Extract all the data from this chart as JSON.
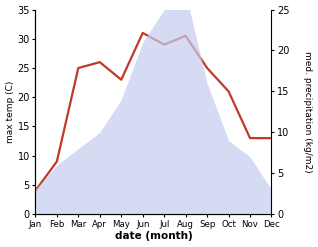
{
  "months": [
    "Jan",
    "Feb",
    "Mar",
    "Apr",
    "May",
    "Jun",
    "Jul",
    "Aug",
    "Sep",
    "Oct",
    "Nov",
    "Dec"
  ],
  "temperature": [
    4,
    9,
    25,
    26,
    23,
    31,
    29,
    30.5,
    25,
    21,
    13,
    13
  ],
  "precipitation_right": [
    3,
    6,
    8,
    10,
    14,
    21,
    25,
    27,
    16,
    9,
    7,
    3
  ],
  "temp_color": "#c0392b",
  "precip_fill_color": "#c5cdf0",
  "temp_ylim": [
    0,
    35
  ],
  "precip_ylim": [
    0,
    25
  ],
  "left_yticks": [
    0,
    5,
    10,
    15,
    20,
    25,
    30,
    35
  ],
  "right_yticks": [
    0,
    5,
    10,
    15,
    20,
    25
  ],
  "xlabel": "date (month)",
  "ylabel_left": "max temp (C)",
  "ylabel_right": "med. precipitation (kg/m2)",
  "bg_color": "#ffffff",
  "line_width": 1.6,
  "precip_alpha": 0.7
}
